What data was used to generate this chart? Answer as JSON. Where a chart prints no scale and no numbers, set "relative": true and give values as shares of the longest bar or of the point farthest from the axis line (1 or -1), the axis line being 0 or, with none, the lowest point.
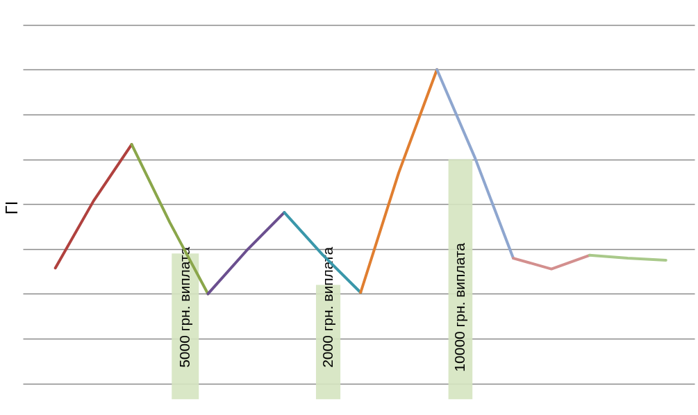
{
  "chart_data": {
    "type": "line",
    "relative": true,
    "ylabel": "ГІ",
    "tick_labels": false,
    "grid": "y",
    "categories": [
      null,
      null,
      null,
      null,
      null,
      null,
      null,
      null,
      null,
      null,
      null,
      null,
      null,
      null,
      null,
      null,
      null
    ],
    "series": [
      {
        "color": "#b0413e",
        "values": [
          0.115,
          0.414,
          0.666,
          null,
          null,
          null,
          null,
          null,
          null,
          null,
          null,
          null,
          null,
          null,
          null,
          null,
          null
        ]
      },
      {
        "color": "#8aa64a",
        "values": [
          null,
          null,
          0.666,
          0.318,
          0,
          null,
          null,
          null,
          null,
          null,
          null,
          null,
          null,
          null,
          null,
          null,
          null
        ]
      },
      {
        "color": "#6b4f8f",
        "values": [
          null,
          null,
          null,
          null,
          0,
          0.191,
          0.363,
          null,
          null,
          null,
          null,
          null,
          null,
          null,
          null,
          null,
          null
        ]
      },
      {
        "color": "#3a97aa",
        "values": [
          null,
          null,
          null,
          null,
          null,
          null,
          0.363,
          0.175,
          0.006,
          null,
          null,
          null,
          null,
          null,
          null,
          null,
          null
        ]
      },
      {
        "color": "#e07e30",
        "values": [
          null,
          null,
          null,
          null,
          null,
          null,
          null,
          null,
          0.006,
          0.541,
          1,
          null,
          null,
          null,
          null,
          null,
          null
        ]
      },
      {
        "color": "#8ea6cf",
        "values": [
          null,
          null,
          null,
          null,
          null,
          null,
          null,
          null,
          null,
          null,
          1,
          0.605,
          0.159,
          null,
          null,
          null,
          null
        ]
      },
      {
        "color": "#d38f8e",
        "values": [
          null,
          null,
          null,
          null,
          null,
          null,
          null,
          null,
          null,
          null,
          null,
          null,
          0.159,
          0.111,
          0.172,
          null,
          null
        ]
      },
      {
        "color": "#a9c98a",
        "values": [
          null,
          null,
          null,
          null,
          null,
          null,
          null,
          null,
          null,
          null,
          null,
          null,
          null,
          null,
          0.172,
          0.159,
          0.15
        ]
      }
    ],
    "annotations": [
      "5000 грн. виплата",
      "2000 грн. виплата",
      "10000 грн. виплата"
    ]
  }
}
